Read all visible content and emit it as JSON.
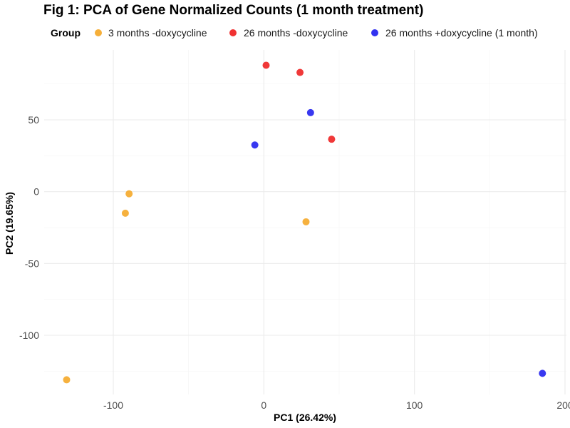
{
  "chart_data": {
    "type": "scatter",
    "title": "Fig 1: PCA of Gene Normalized Counts (1 month treatment)",
    "xlabel": "PC1 (26.42%)",
    "ylabel": "PC2 (19.65%)",
    "xlim": [
      -150,
      200
    ],
    "ylim": [
      -140,
      94
    ],
    "x_ticks": [
      -100,
      0,
      100,
      200
    ],
    "y_ticks": [
      -100,
      -50,
      0,
      50
    ],
    "x_tick_labels": [
      "-100",
      "0",
      "100",
      "200"
    ],
    "y_tick_labels": [
      "-100",
      "-50",
      "0",
      "50"
    ],
    "grid": true,
    "legend": {
      "title": "Group",
      "position": "top"
    },
    "series": [
      {
        "name": "3 months -doxycycline",
        "color": "#f5a623",
        "points": [
          {
            "x": -89.5,
            "y": -1.5
          },
          {
            "x": -92,
            "y": -15
          },
          {
            "x": 28,
            "y": -21
          },
          {
            "x": -131,
            "y": -131
          }
        ]
      },
      {
        "name": "26 months -doxycycline",
        "color": "#ee1c1c",
        "points": [
          {
            "x": 1.5,
            "y": 88
          },
          {
            "x": 24,
            "y": 83
          },
          {
            "x": 45,
            "y": 36.5
          }
        ]
      },
      {
        "name": "26 months +doxycycline (1 month)",
        "color": "#1c1cee",
        "points": [
          {
            "x": 31,
            "y": 55
          },
          {
            "x": -6,
            "y": 32.5
          },
          {
            "x": 185,
            "y": -126.5
          }
        ]
      }
    ]
  }
}
